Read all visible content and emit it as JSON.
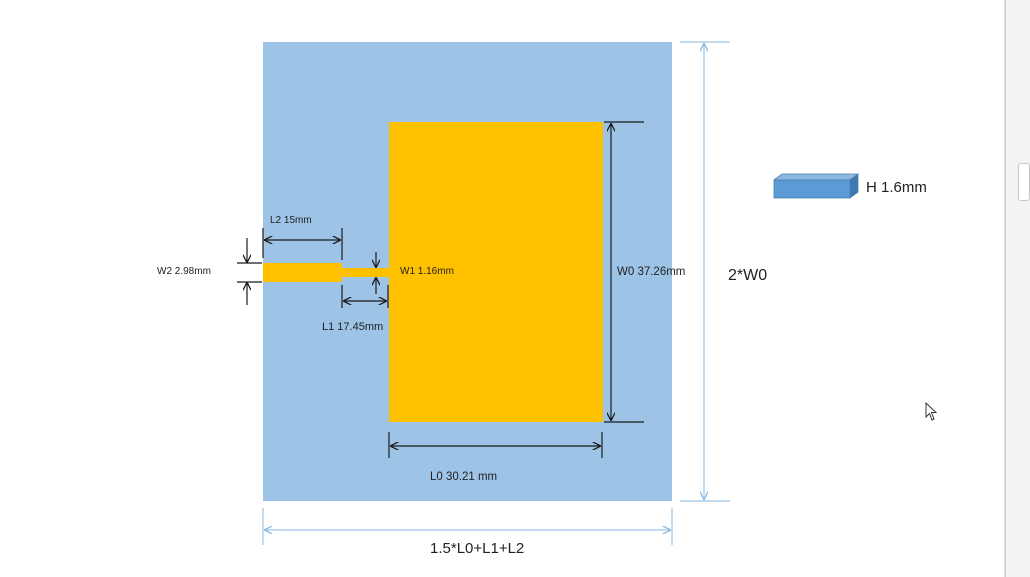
{
  "diagram": {
    "labels": {
      "l2": "L2 15mm",
      "w2": "W2 2.98mm",
      "w1": "W1 1.16mm",
      "l1": "L1 17.45mm",
      "w0": "W0 37.26mm",
      "l0": "L0 30.21 mm",
      "ground_height": "2*W0",
      "ground_width": "1.5*L0+L1+L2",
      "substrate_height": "H 1.6mm"
    },
    "colors": {
      "substrate": "#9dc3e6",
      "patch": "#ffc000",
      "substrate_block": "#5b9bd5"
    }
  },
  "icons": {
    "cursor": "mouse-pointer-icon"
  }
}
